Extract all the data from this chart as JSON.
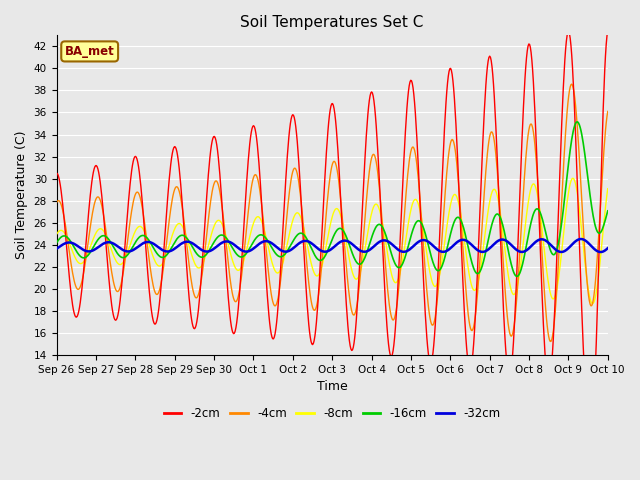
{
  "title": "Soil Temperatures Set C",
  "xlabel": "Time",
  "ylabel": "Soil Temperature (C)",
  "ylim": [
    14,
    43
  ],
  "yticks": [
    14,
    16,
    18,
    20,
    22,
    24,
    26,
    28,
    30,
    32,
    34,
    36,
    38,
    40,
    42
  ],
  "colors": {
    "-2cm": "#ff0000",
    "-4cm": "#ff8800",
    "-8cm": "#ffff00",
    "-16cm": "#00cc00",
    "-32cm": "#0000dd"
  },
  "annotation_text": "BA_met",
  "annotation_bg": "#ffff99",
  "annotation_border": "#996600",
  "plot_bg": "#e8e8e8",
  "fig_bg": "#e8e8e8",
  "tick_labels": [
    "Sep 26",
    "Sep 27",
    "Sep 28",
    "Sep 29",
    "Sep 30",
    "Oct 1",
    "Oct 2",
    "Oct 3",
    "Oct 4",
    "Oct 5",
    "Oct 6",
    "Oct 7",
    "Oct 8",
    "Oct 9",
    "Oct 10"
  ],
  "num_points": 720
}
